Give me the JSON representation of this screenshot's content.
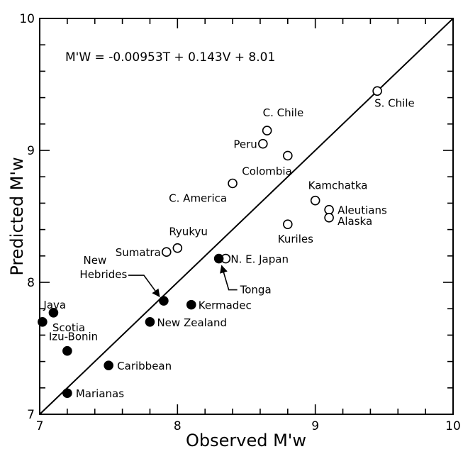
{
  "chart_data": {
    "type": "scatter",
    "xlabel": "Observed M'w",
    "ylabel": "Predicted M'w",
    "xlim": [
      7,
      10
    ],
    "ylim": [
      7,
      10
    ],
    "x_ticks": [
      "7",
      "8",
      "9",
      "10"
    ],
    "y_ticks": [
      "7",
      "8",
      "9",
      "10"
    ],
    "equation": "M'W = -0.00953T + 0.143V + 8.01",
    "reference_line": {
      "from": [
        7,
        7
      ],
      "to": [
        10,
        10
      ]
    },
    "points": [
      {
        "label": "S. Chile",
        "x": 9.45,
        "y": 9.45,
        "marker": "open"
      },
      {
        "label": "C. Chile",
        "x": 8.65,
        "y": 9.15,
        "marker": "open"
      },
      {
        "label": "Peru",
        "x": 8.62,
        "y": 9.05,
        "marker": "open"
      },
      {
        "label": "Colombia",
        "x": 8.8,
        "y": 8.96,
        "marker": "open"
      },
      {
        "label": "C. America",
        "x": 8.4,
        "y": 8.75,
        "marker": "open"
      },
      {
        "label": "Kamchatka",
        "x": 9.0,
        "y": 8.62,
        "marker": "open"
      },
      {
        "label": "Aleutians",
        "x": 9.1,
        "y": 8.55,
        "marker": "open"
      },
      {
        "label": "Alaska",
        "x": 9.1,
        "y": 8.49,
        "marker": "open"
      },
      {
        "label": "Kuriles",
        "x": 8.8,
        "y": 8.44,
        "marker": "open"
      },
      {
        "label": "Ryukyu",
        "x": 8.0,
        "y": 8.26,
        "marker": "open"
      },
      {
        "label": "Sumatra",
        "x": 7.92,
        "y": 8.23,
        "marker": "open"
      },
      {
        "label": "N. E. Japan",
        "x": 8.35,
        "y": 8.18,
        "marker": "open"
      },
      {
        "label": "Tonga",
        "x": 8.3,
        "y": 8.18,
        "marker": "filled"
      },
      {
        "label": "New Hebrides",
        "x": 7.9,
        "y": 7.86,
        "marker": "filled"
      },
      {
        "label": "Kermadec",
        "x": 8.1,
        "y": 7.83,
        "marker": "filled"
      },
      {
        "label": "New Zealand",
        "x": 7.8,
        "y": 7.7,
        "marker": "filled"
      },
      {
        "label": "Java",
        "x": 7.1,
        "y": 7.77,
        "marker": "filled"
      },
      {
        "label": "Scotia",
        "x": 7.02,
        "y": 7.7,
        "marker": "filled"
      },
      {
        "label": "Izu-Bonin",
        "x": 7.2,
        "y": 7.48,
        "marker": "filled"
      },
      {
        "label": "Caribbean",
        "x": 7.5,
        "y": 7.37,
        "marker": "filled"
      },
      {
        "label": "Marianas",
        "x": 7.2,
        "y": 7.16,
        "marker": "filled"
      }
    ]
  }
}
